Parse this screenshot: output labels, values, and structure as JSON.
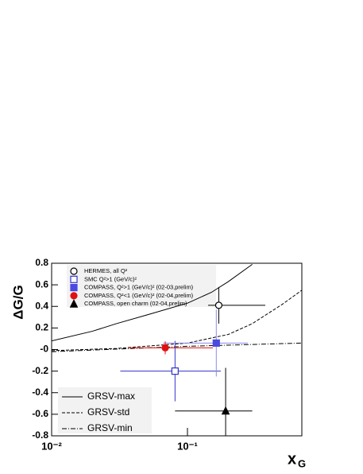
{
  "chart_data": {
    "type": "scatter",
    "ylabel": "ΔG/G",
    "xlabel": "x",
    "xlabel_sub": "G",
    "xscale": "log",
    "xlim": [
      0.01,
      0.695
    ],
    "ylim": [
      -0.8,
      0.8
    ],
    "xticks": [
      {
        "value": 0.01,
        "label": "10⁻²"
      },
      {
        "value": 0.1,
        "label": "10⁻¹"
      }
    ],
    "yticks": [
      0.8,
      0.6,
      0.4,
      0.2,
      {
        "value": 0,
        "label": "-0"
      },
      -0.2,
      -0.4,
      -0.6,
      -0.8
    ],
    "series": [
      {
        "name": "HERMES, all Q²",
        "color": "#000000",
        "marker": "circle",
        "filled": false,
        "x": [
          0.17
        ],
        "values": [
          0.41
        ],
        "yerr": [
          0.17
        ],
        "xrange": [
          [
            0.142,
            0.374
          ]
        ]
      },
      {
        "name": "SMC Q²>1 (GeV/c)²",
        "color": "#3333cc",
        "marker": "square",
        "filled": false,
        "x": [
          0.081
        ],
        "values": [
          -0.2
        ],
        "yerr": [
          0.28
        ],
        "xrange": [
          [
            0.032,
            0.176
          ]
        ]
      },
      {
        "name": "COMPASS, Q²>1 (GeV/c)² (02-03,prelim)",
        "color": "#4a4ae0",
        "marker": "square",
        "filled": true,
        "x": [
          0.163
        ],
        "values": [
          0.06
        ],
        "yerr": [
          0.31
        ],
        "xrange": [
          [
            0.066,
            0.278
          ]
        ]
      },
      {
        "name": "COMPASS, Q²<1 (GeV/c)² (02-04,prelim)",
        "color": "#e01010",
        "marker": "circle",
        "filled": true,
        "x": [
          0.0686
        ],
        "values": [
          0.016
        ],
        "yerr": [
          0.06
        ],
        "xrange": [
          [
            0.037,
            0.154
          ]
        ]
      },
      {
        "name": "COMPASS, open charm (02-04,prelim)",
        "color": "#000000",
        "marker": "triangle",
        "filled": true,
        "x": [
          0.191
        ],
        "values": [
          -0.57
        ],
        "yerr": [
          0.4
        ],
        "xrange": [
          [
            0.081,
            0.3
          ]
        ]
      }
    ],
    "curves": [
      {
        "name": "GRSV-max",
        "dash": "solid",
        "x": [
          0.01,
          0.02,
          0.03,
          0.05,
          0.1,
          0.15,
          0.2,
          0.3
        ],
        "values": [
          0.08,
          0.17,
          0.24,
          0.32,
          0.43,
          0.53,
          0.63,
          0.79
        ]
      },
      {
        "name": "GRSV-std",
        "dash": "dashed",
        "x": [
          0.01,
          0.03,
          0.1,
          0.2,
          0.3,
          0.5,
          0.695
        ],
        "values": [
          -0.01,
          0.01,
          0.06,
          0.14,
          0.24,
          0.42,
          0.55
        ]
      },
      {
        "name": "GRSV-min",
        "dash": "dashdot",
        "x": [
          0.01,
          0.1,
          0.695
        ],
        "values": [
          -0.02,
          0.03,
          0.06
        ]
      }
    ]
  }
}
